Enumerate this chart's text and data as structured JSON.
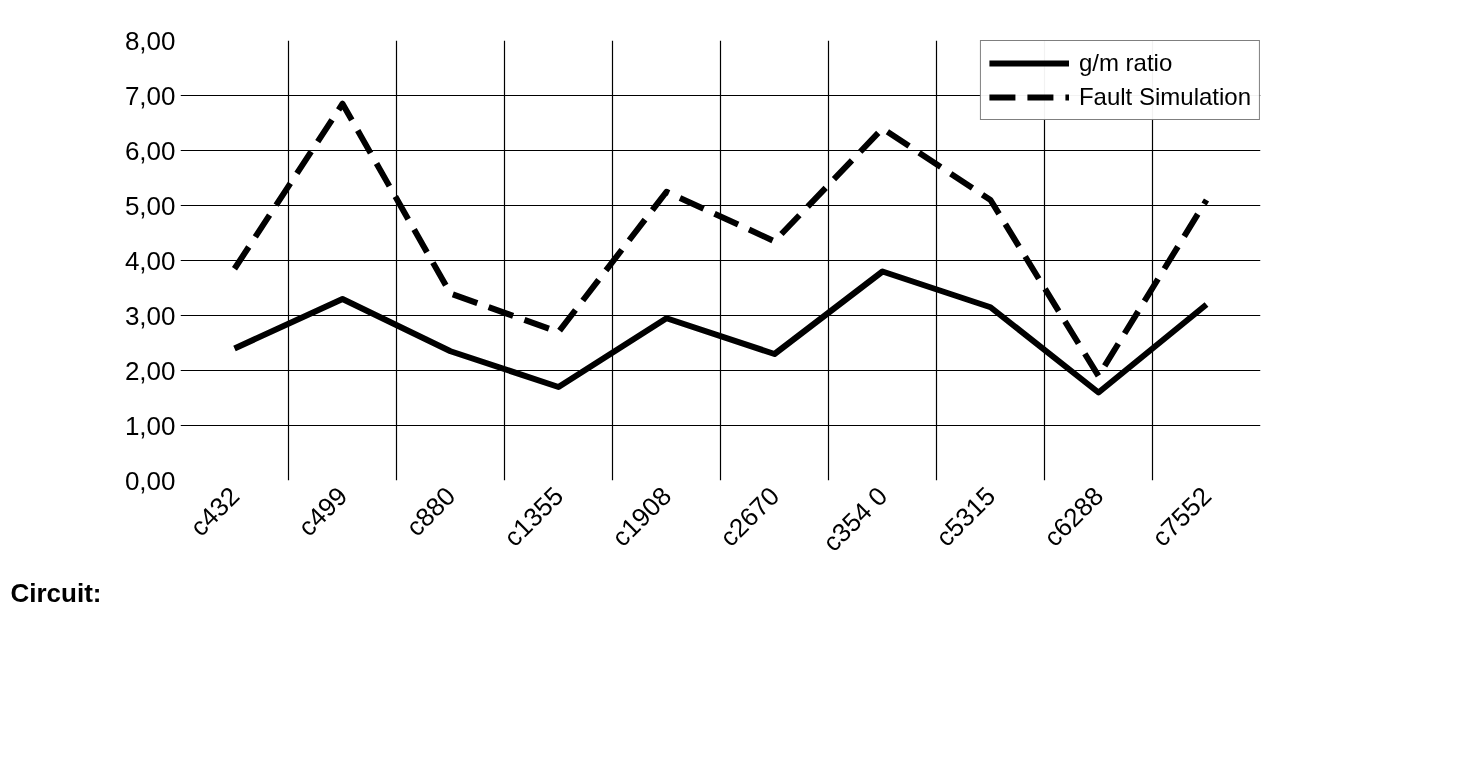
{
  "chart_data": {
    "type": "line",
    "xlabel": "Circuit:",
    "categories": [
      "c432",
      "c499",
      "c880",
      "c1355",
      "c1908",
      "c2670",
      "c354 0",
      "c5315",
      "c6288",
      "c7552"
    ],
    "series": [
      {
        "name": "g/m ratio",
        "color": "#000000",
        "line_style": "solid",
        "values": [
          2.4,
          3.3,
          2.35,
          1.7,
          2.95,
          2.3,
          3.8,
          3.15,
          1.6,
          3.2
        ]
      },
      {
        "name": "Fault Simulation",
        "color": "#000000",
        "line_style": "dashed",
        "values": [
          3.85,
          6.85,
          3.4,
          2.7,
          5.25,
          4.35,
          6.4,
          5.1,
          1.9,
          5.1
        ]
      }
    ],
    "ylim": [
      0,
      8
    ],
    "yticks": [
      {
        "value": 0,
        "label": "0,00"
      },
      {
        "value": 1,
        "label": "1,00"
      },
      {
        "value": 2,
        "label": "2,00"
      },
      {
        "value": 3,
        "label": "3,00"
      },
      {
        "value": 4,
        "label": "4,00"
      },
      {
        "value": 5,
        "label": "5,00"
      },
      {
        "value": 6,
        "label": "6,00"
      },
      {
        "value": 7,
        "label": "7,00"
      },
      {
        "value": 8,
        "label": "8,00"
      }
    ],
    "grid": true,
    "legend": "top right",
    "marker": "none"
  }
}
